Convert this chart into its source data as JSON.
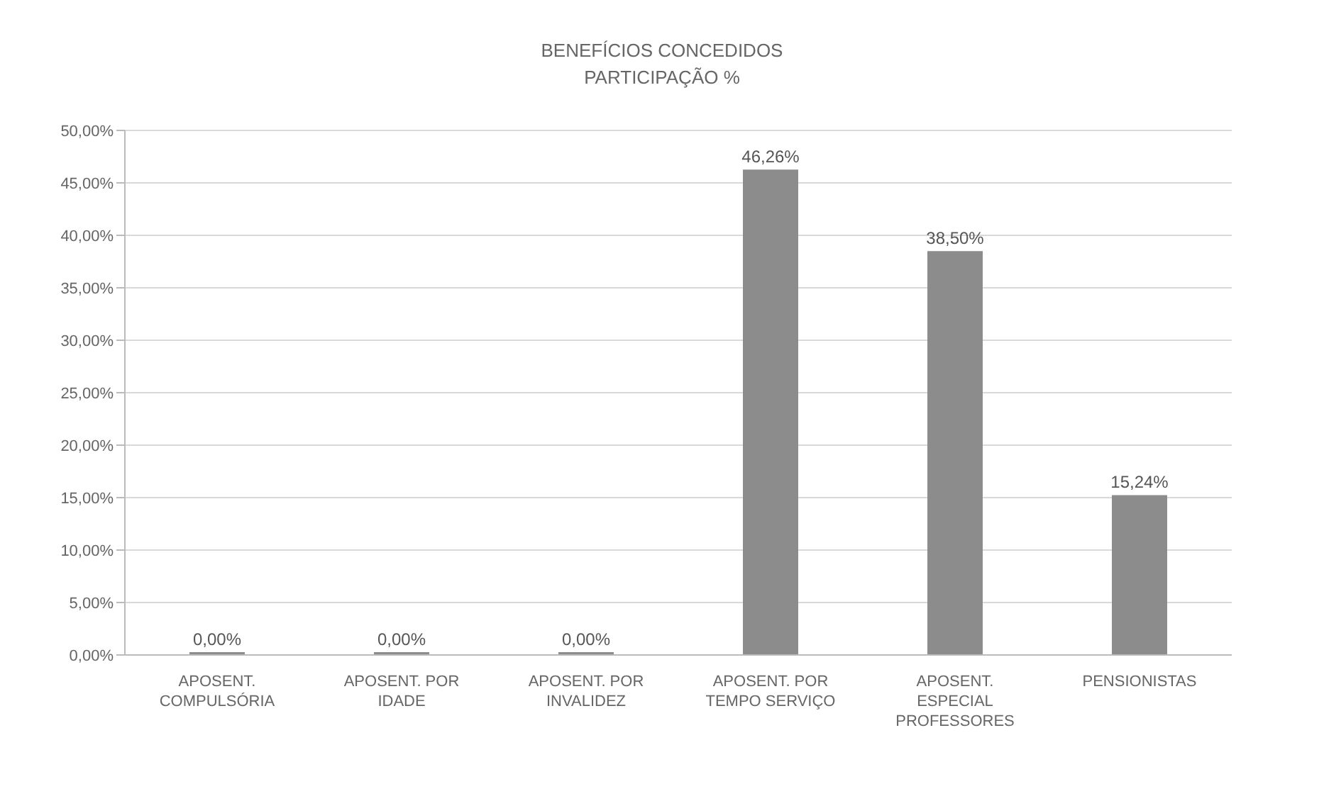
{
  "chart_data": {
    "type": "bar",
    "title": "BENEFÍCIOS CONCEDIDOS",
    "subtitle": "PARTICIPAÇÃO %",
    "categories": [
      "APOSENT. COMPULSÓRIA",
      "APOSENT. POR IDADE",
      "APOSENT. POR INVALIDEZ",
      "APOSENT. POR TEMPO SERVIÇO",
      "APOSENT. ESPECIAL PROFESSORES",
      "PENSIONISTAS"
    ],
    "values": [
      0,
      0,
      0,
      46.26,
      38.5,
      15.24
    ],
    "value_labels": [
      "0,00%",
      "0,00%",
      "0,00%",
      "46,26%",
      "38,50%",
      "15,24%"
    ],
    "color": "#8c8c8c",
    "ylim": [
      0,
      50
    ],
    "yticks": [
      {
        "value": 0,
        "label": "0,00%"
      },
      {
        "value": 5,
        "label": "5,00%"
      },
      {
        "value": 10,
        "label": "10,00%"
      },
      {
        "value": 15,
        "label": "15,00%"
      },
      {
        "value": 20,
        "label": "20,00%"
      },
      {
        "value": 25,
        "label": "25,00%"
      },
      {
        "value": 30,
        "label": "30,00%"
      },
      {
        "value": 35,
        "label": "35,00%"
      },
      {
        "value": 40,
        "label": "40,00%"
      },
      {
        "value": 45,
        "label": "45,00%"
      },
      {
        "value": 50,
        "label": "50,00%"
      }
    ],
    "grid": "y"
  }
}
